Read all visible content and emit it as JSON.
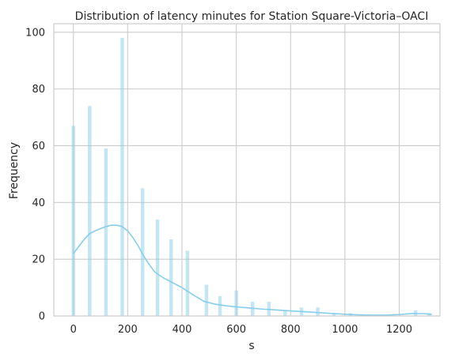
{
  "chart_data": {
    "type": "bar",
    "title": "Distribution of latency minutes for Station Square-Victoria–OACI",
    "xlabel": "s",
    "ylabel": "Frequency",
    "xlim": [
      -72,
      1350
    ],
    "ylim": [
      0,
      103
    ],
    "xticks": [
      0,
      200,
      400,
      600,
      800,
      1000,
      1200
    ],
    "yticks": [
      0,
      20,
      40,
      60,
      80,
      100
    ],
    "grid": true,
    "colors": {
      "bar": "#87ceeb",
      "kde": "#87ceeb",
      "grid": "#cccccc"
    },
    "bin_width": 13,
    "bins": [
      {
        "x": 0,
        "count": 67
      },
      {
        "x": 60,
        "count": 74
      },
      {
        "x": 120,
        "count": 59
      },
      {
        "x": 180,
        "count": 98
      },
      {
        "x": 240,
        "count": 0
      },
      {
        "x": 255,
        "count": 45
      },
      {
        "x": 300,
        "count": 0
      },
      {
        "x": 310,
        "count": 34
      },
      {
        "x": 360,
        "count": 27
      },
      {
        "x": 420,
        "count": 23
      },
      {
        "x": 480,
        "count": 0
      },
      {
        "x": 490,
        "count": 11
      },
      {
        "x": 540,
        "count": 7
      },
      {
        "x": 600,
        "count": 9
      },
      {
        "x": 660,
        "count": 5
      },
      {
        "x": 720,
        "count": 5
      },
      {
        "x": 780,
        "count": 2
      },
      {
        "x": 840,
        "count": 3
      },
      {
        "x": 900,
        "count": 3
      },
      {
        "x": 960,
        "count": 1
      },
      {
        "x": 1020,
        "count": 1
      },
      {
        "x": 1080,
        "count": 0
      },
      {
        "x": 1140,
        "count": 0
      },
      {
        "x": 1200,
        "count": 0
      },
      {
        "x": 1260,
        "count": 2
      },
      {
        "x": 1310,
        "count": 1
      }
    ],
    "kde": {
      "x": [
        0,
        20,
        40,
        60,
        80,
        100,
        120,
        140,
        160,
        180,
        200,
        220,
        240,
        260,
        280,
        300,
        330,
        360,
        400,
        440,
        480,
        520,
        560,
        600,
        650,
        700,
        750,
        800,
        850,
        900,
        950,
        1000,
        1050,
        1100,
        1150,
        1200,
        1250,
        1290,
        1320
      ],
      "y": [
        22,
        24.5,
        27,
        29,
        30,
        30.8,
        31.5,
        32,
        32,
        31.5,
        30,
        27.5,
        24.5,
        21,
        18,
        15.5,
        13.5,
        12,
        10,
        7.5,
        5.2,
        4.2,
        3.6,
        3.2,
        2.8,
        2.4,
        2.1,
        1.8,
        1.5,
        1.2,
        0.9,
        0.6,
        0.4,
        0.3,
        0.3,
        0.5,
        0.9,
        0.8,
        0.6
      ]
    }
  }
}
